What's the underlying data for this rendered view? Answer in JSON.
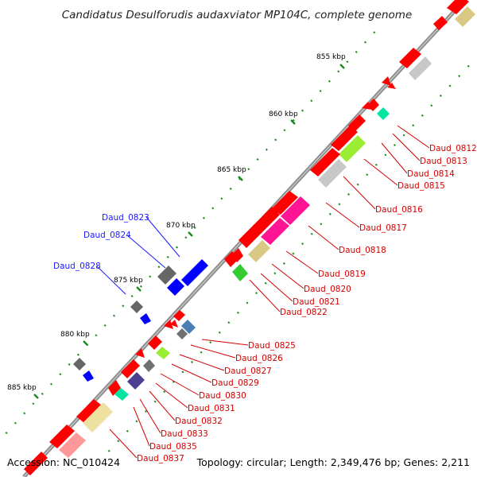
{
  "title": "Candidatus Desulforudis audaxviator MP104C, complete genome",
  "footer": {
    "accession": "Accession: NC_010424",
    "topology": "Topology: circular; Length: 2,349,476 bp; Genes: 2,211"
  },
  "ticks": [
    "855 kbp",
    "860 kbp",
    "865 kbp",
    "870 kbp",
    "875 kbp",
    "880 kbp",
    "885 kbp"
  ],
  "colors": {
    "forward_label": "#1a1aff",
    "reverse_label": "#d40000",
    "backbone": "#888888",
    "ticks": "#1a8a1a"
  },
  "labels_left": [
    "Daud_0823",
    "Daud_0824",
    "Daud_0828"
  ],
  "labels_right": [
    "Daud_0812",
    "Daud_0813",
    "Daud_0814",
    "Daud_0815",
    "Daud_0816",
    "Daud_0817",
    "Daud_0818",
    "Daud_0819",
    "Daud_0820",
    "Daud_0821",
    "Daud_0822",
    "Daud_0825",
    "Daud_0826",
    "Daud_0827",
    "Daud_0829",
    "Daud_0830",
    "Daud_0831",
    "Daud_0832",
    "Daud_0833",
    "Daud_0835",
    "Daud_0837"
  ]
}
